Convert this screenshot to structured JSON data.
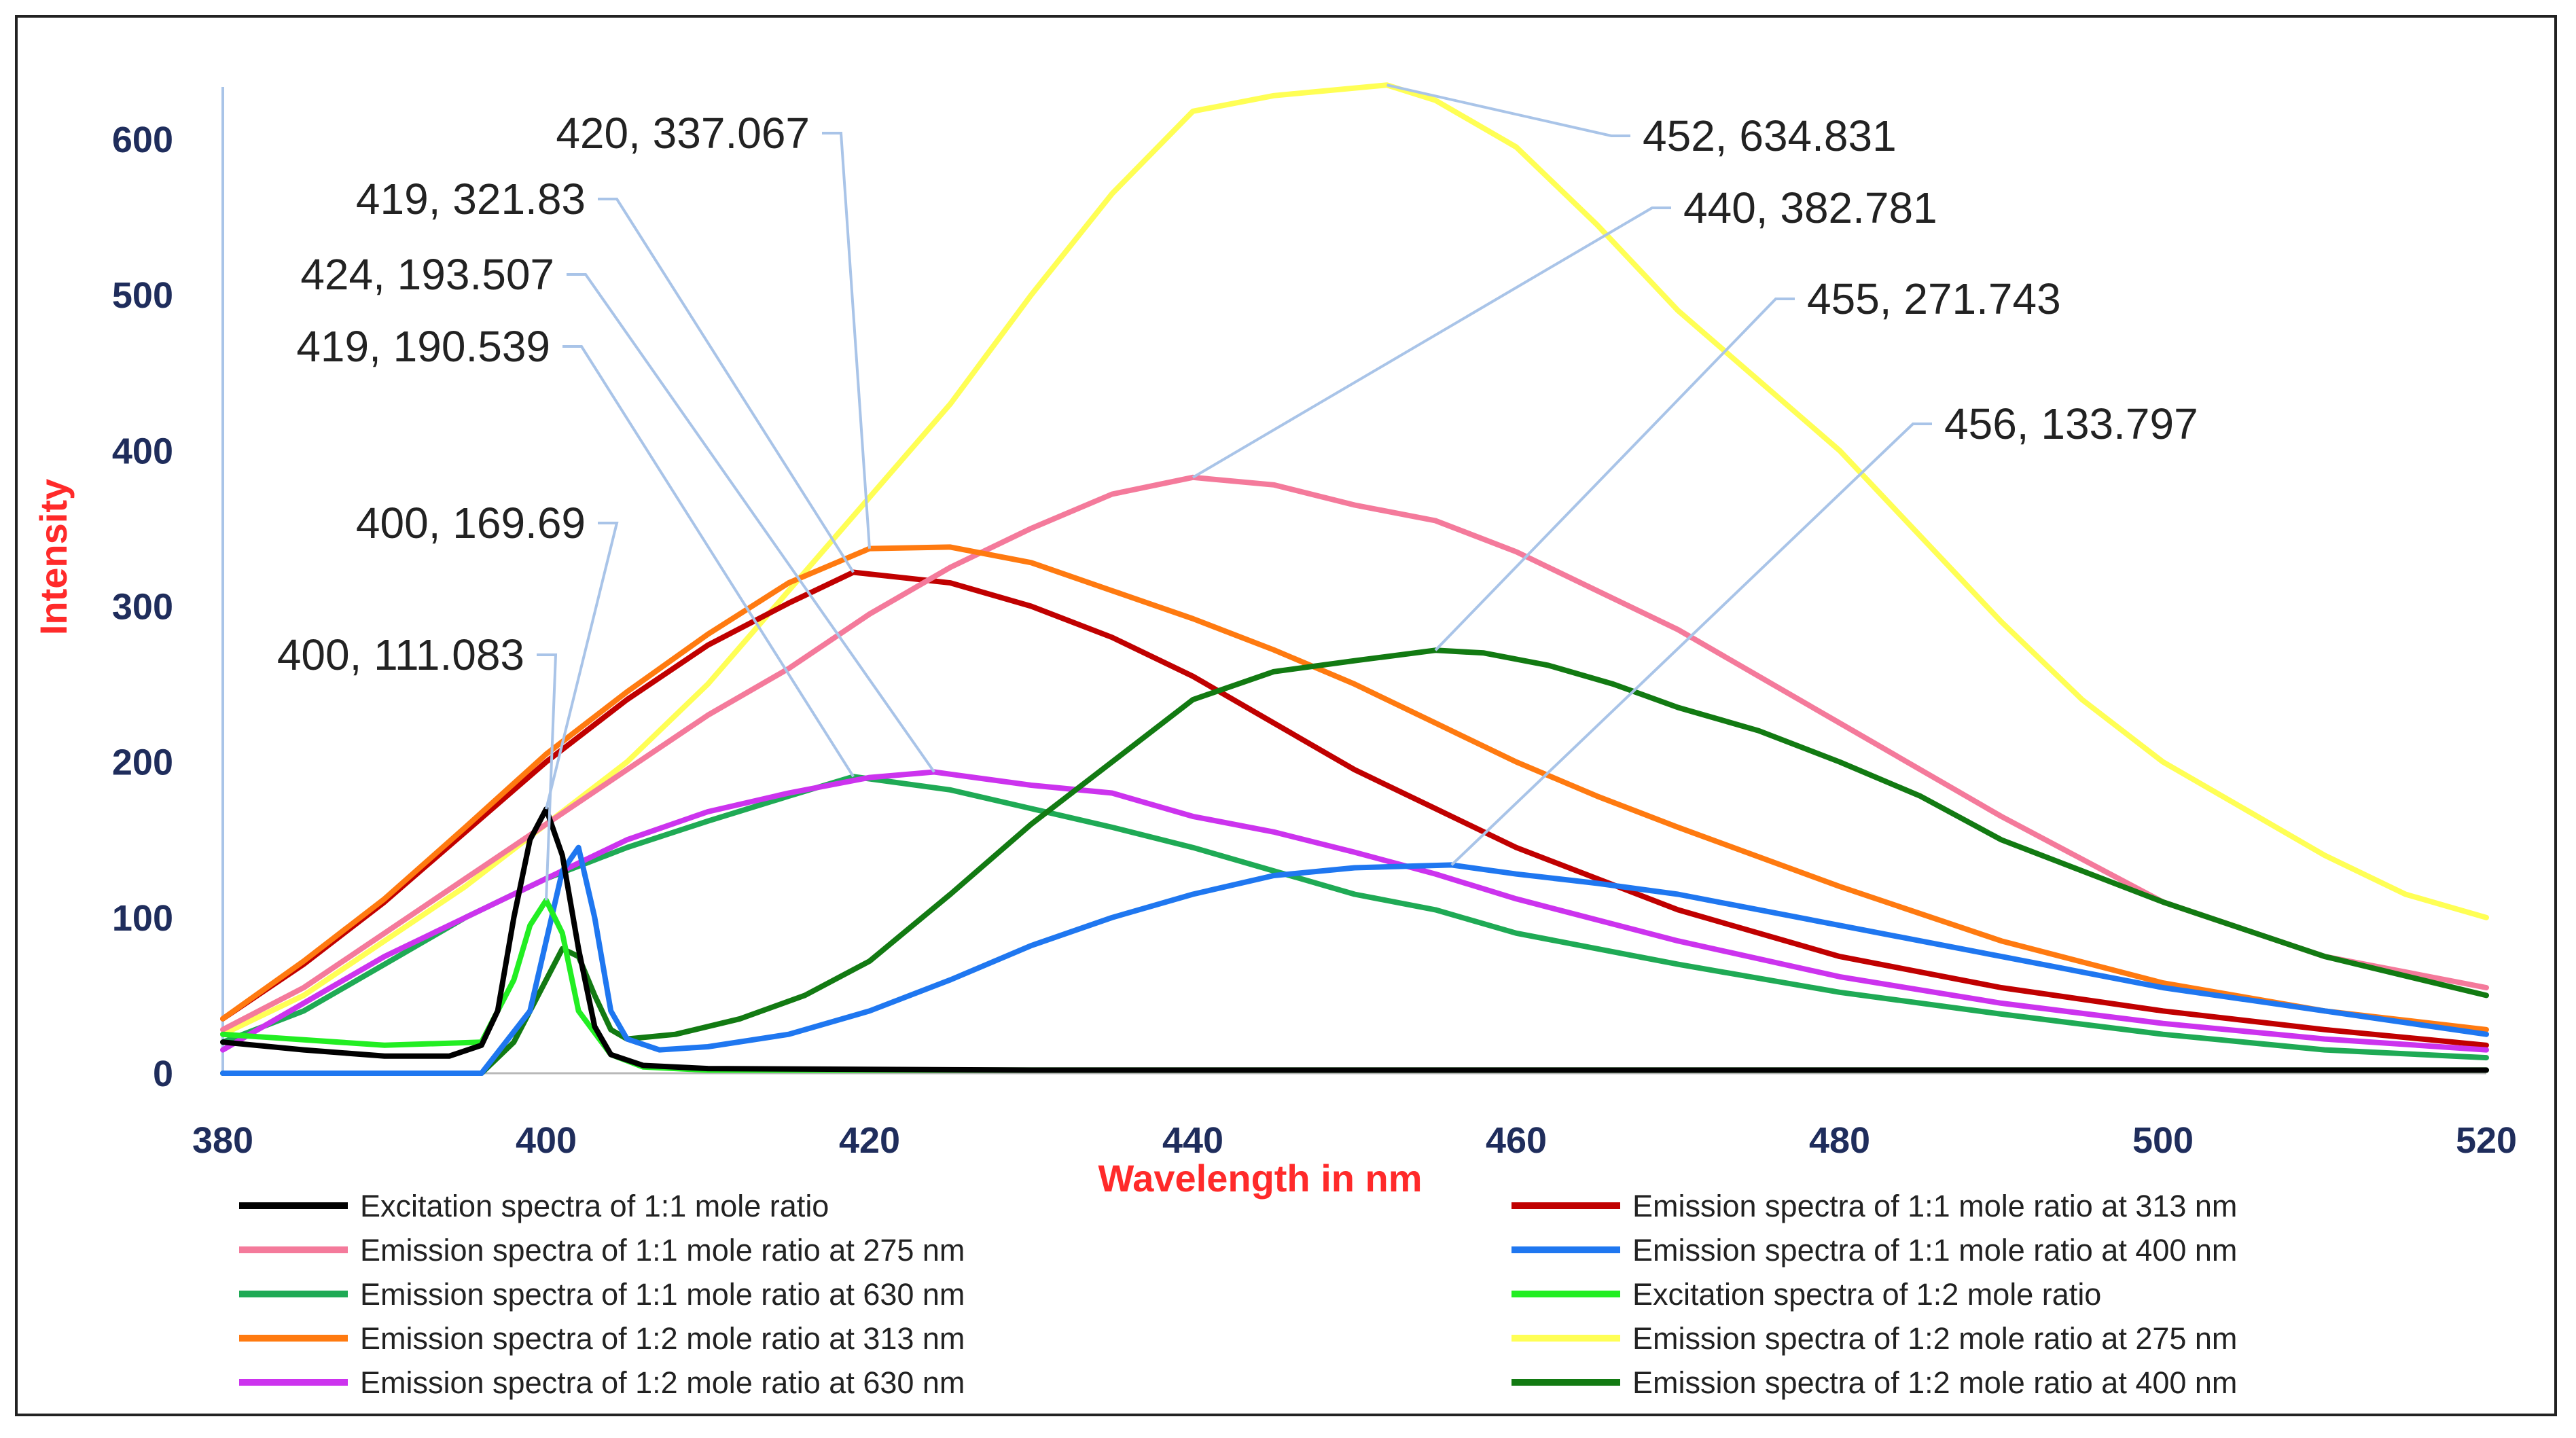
{
  "chart_data": {
    "type": "line",
    "title": "",
    "xlabel": "Wavelength in nm",
    "ylabel": "Intensity",
    "xlim": [
      380,
      520
    ],
    "ylim": [
      0,
      650
    ],
    "xticks": [
      "380",
      "400",
      "420",
      "440",
      "460",
      "480",
      "500",
      "520"
    ],
    "yticks": [
      "0",
      "100",
      "200",
      "300",
      "400",
      "500",
      "600"
    ],
    "grid": false,
    "legend_position": "bottom",
    "series": [
      {
        "name": "Excitation spectra of 1:1 mole ratio",
        "color": "#000000",
        "points": [
          [
            380,
            20
          ],
          [
            385,
            15
          ],
          [
            390,
            11
          ],
          [
            394,
            11
          ],
          [
            396,
            18
          ],
          [
            397,
            40
          ],
          [
            398,
            100
          ],
          [
            399,
            150
          ],
          [
            400,
            169.69
          ],
          [
            401,
            140
          ],
          [
            402,
            80
          ],
          [
            403,
            30
          ],
          [
            404,
            12
          ],
          [
            406,
            5
          ],
          [
            410,
            3
          ],
          [
            430,
            2
          ],
          [
            520,
            2
          ]
        ]
      },
      {
        "name": "Emission spectra of 1:1 mole ratio at 313 nm",
        "color": "#c00000",
        "points": [
          [
            380,
            35
          ],
          [
            385,
            70
          ],
          [
            390,
            110
          ],
          [
            395,
            155
          ],
          [
            400,
            200
          ],
          [
            405,
            240
          ],
          [
            410,
            275
          ],
          [
            415,
            302
          ],
          [
            419,
            321.83
          ],
          [
            425,
            315
          ],
          [
            430,
            300
          ],
          [
            435,
            280
          ],
          [
            440,
            255
          ],
          [
            445,
            225
          ],
          [
            450,
            195
          ],
          [
            455,
            170
          ],
          [
            460,
            145
          ],
          [
            470,
            105
          ],
          [
            480,
            75
          ],
          [
            490,
            55
          ],
          [
            500,
            40
          ],
          [
            510,
            28
          ],
          [
            520,
            18
          ]
        ]
      },
      {
        "name": "Emission spectra of 1:1 mole ratio at 275 nm",
        "color": "#f47a9b",
        "points": [
          [
            380,
            28
          ],
          [
            385,
            55
          ],
          [
            390,
            90
          ],
          [
            395,
            125
          ],
          [
            400,
            160
          ],
          [
            405,
            195
          ],
          [
            410,
            230
          ],
          [
            415,
            260
          ],
          [
            420,
            295
          ],
          [
            425,
            325
          ],
          [
            430,
            350
          ],
          [
            435,
            372
          ],
          [
            440,
            382.781
          ],
          [
            445,
            378
          ],
          [
            450,
            365
          ],
          [
            455,
            355
          ],
          [
            460,
            335
          ],
          [
            465,
            310
          ],
          [
            470,
            285
          ],
          [
            475,
            255
          ],
          [
            480,
            225
          ],
          [
            490,
            165
          ],
          [
            500,
            110
          ],
          [
            510,
            75
          ],
          [
            520,
            55
          ]
        ]
      },
      {
        "name": "Emission spectra of 1:1 mole ratio at 400 nm",
        "color": "#1f77f0",
        "points": [
          [
            380,
            0
          ],
          [
            396,
            0
          ],
          [
            399,
            40
          ],
          [
            401,
            130
          ],
          [
            402,
            145
          ],
          [
            403,
            100
          ],
          [
            404,
            40
          ],
          [
            405,
            22
          ],
          [
            407,
            15
          ],
          [
            410,
            17
          ],
          [
            415,
            25
          ],
          [
            420,
            40
          ],
          [
            425,
            60
          ],
          [
            430,
            82
          ],
          [
            435,
            100
          ],
          [
            440,
            115
          ],
          [
            445,
            127
          ],
          [
            450,
            132
          ],
          [
            456,
            133.797
          ],
          [
            460,
            128
          ],
          [
            465,
            122
          ],
          [
            470,
            115
          ],
          [
            480,
            95
          ],
          [
            490,
            75
          ],
          [
            500,
            55
          ],
          [
            510,
            40
          ],
          [
            520,
            25
          ]
        ]
      },
      {
        "name": "Emission spectra of 1:1 mole ratio at 630 nm",
        "color": "#1faa55",
        "points": [
          [
            380,
            20
          ],
          [
            385,
            40
          ],
          [
            390,
            70
          ],
          [
            395,
            100
          ],
          [
            400,
            125
          ],
          [
            405,
            145
          ],
          [
            410,
            162
          ],
          [
            415,
            178
          ],
          [
            419,
            190.539
          ],
          [
            425,
            182
          ],
          [
            430,
            170
          ],
          [
            435,
            158
          ],
          [
            440,
            145
          ],
          [
            445,
            130
          ],
          [
            450,
            115
          ],
          [
            455,
            105
          ],
          [
            460,
            90
          ],
          [
            470,
            70
          ],
          [
            480,
            52
          ],
          [
            490,
            38
          ],
          [
            500,
            25
          ],
          [
            510,
            15
          ],
          [
            520,
            10
          ]
        ]
      },
      {
        "name": "Excitation spectra of 1:2 mole ratio",
        "color": "#22ee22",
        "points": [
          [
            380,
            25
          ],
          [
            390,
            18
          ],
          [
            396,
            20
          ],
          [
            398,
            60
          ],
          [
            399,
            95
          ],
          [
            400,
            111.083
          ],
          [
            401,
            90
          ],
          [
            402,
            40
          ],
          [
            404,
            12
          ],
          [
            406,
            4
          ],
          [
            410,
            2
          ],
          [
            520,
            2
          ]
        ]
      },
      {
        "name": "Emission spectra of 1:2 mole ratio at 313 nm",
        "color": "#ff7a10",
        "points": [
          [
            380,
            35
          ],
          [
            385,
            72
          ],
          [
            390,
            112
          ],
          [
            395,
            158
          ],
          [
            400,
            205
          ],
          [
            405,
            245
          ],
          [
            410,
            282
          ],
          [
            415,
            315
          ],
          [
            420,
            337.067
          ],
          [
            425,
            338
          ],
          [
            430,
            328
          ],
          [
            435,
            310
          ],
          [
            440,
            292
          ],
          [
            445,
            272
          ],
          [
            450,
            250
          ],
          [
            455,
            225
          ],
          [
            460,
            200
          ],
          [
            465,
            178
          ],
          [
            470,
            158
          ],
          [
            480,
            120
          ],
          [
            490,
            85
          ],
          [
            500,
            58
          ],
          [
            510,
            40
          ],
          [
            520,
            28
          ]
        ]
      },
      {
        "name": "Emission spectra of 1:2 mole ratio at 275 nm",
        "color": "#ffff55",
        "points": [
          [
            380,
            25
          ],
          [
            385,
            50
          ],
          [
            390,
            85
          ],
          [
            395,
            120
          ],
          [
            400,
            160
          ],
          [
            405,
            200
          ],
          [
            410,
            250
          ],
          [
            415,
            310
          ],
          [
            420,
            370
          ],
          [
            425,
            430
          ],
          [
            430,
            500
          ],
          [
            435,
            565
          ],
          [
            440,
            618
          ],
          [
            445,
            628
          ],
          [
            452,
            634.831
          ],
          [
            455,
            625
          ],
          [
            460,
            595
          ],
          [
            465,
            545
          ],
          [
            470,
            490
          ],
          [
            475,
            445
          ],
          [
            480,
            400
          ],
          [
            485,
            345
          ],
          [
            490,
            290
          ],
          [
            495,
            240
          ],
          [
            500,
            200
          ],
          [
            505,
            170
          ],
          [
            510,
            140
          ],
          [
            515,
            115
          ],
          [
            520,
            100
          ]
        ]
      },
      {
        "name": "Emission spectra of 1:2 mole ratio at 630 nm",
        "color": "#cc33ee",
        "points": [
          [
            380,
            15
          ],
          [
            385,
            45
          ],
          [
            390,
            75
          ],
          [
            395,
            100
          ],
          [
            400,
            125
          ],
          [
            405,
            150
          ],
          [
            410,
            168
          ],
          [
            415,
            180
          ],
          [
            420,
            190
          ],
          [
            424,
            193.507
          ],
          [
            430,
            185
          ],
          [
            435,
            180
          ],
          [
            440,
            165
          ],
          [
            445,
            155
          ],
          [
            450,
            142
          ],
          [
            455,
            128
          ],
          [
            460,
            112
          ],
          [
            470,
            85
          ],
          [
            480,
            62
          ],
          [
            490,
            45
          ],
          [
            500,
            32
          ],
          [
            510,
            22
          ],
          [
            520,
            15
          ]
        ]
      },
      {
        "name": "Emission spectra of 1:2 mole ratio at 400 nm",
        "color": "#127a12",
        "points": [
          [
            380,
            0
          ],
          [
            396,
            0
          ],
          [
            398,
            20
          ],
          [
            400,
            60
          ],
          [
            401,
            80
          ],
          [
            402,
            75
          ],
          [
            403,
            50
          ],
          [
            404,
            28
          ],
          [
            405,
            22
          ],
          [
            408,
            25
          ],
          [
            412,
            35
          ],
          [
            416,
            50
          ],
          [
            420,
            72
          ],
          [
            425,
            115
          ],
          [
            430,
            160
          ],
          [
            435,
            200
          ],
          [
            440,
            240
          ],
          [
            445,
            258
          ],
          [
            450,
            265
          ],
          [
            455,
            271.743
          ],
          [
            458,
            270
          ],
          [
            462,
            262
          ],
          [
            466,
            250
          ],
          [
            470,
            235
          ],
          [
            475,
            220
          ],
          [
            480,
            200
          ],
          [
            485,
            178
          ],
          [
            490,
            150
          ],
          [
            500,
            110
          ],
          [
            510,
            75
          ],
          [
            520,
            50
          ]
        ]
      }
    ],
    "annotations": [
      {
        "text": "452, 634.831",
        "x": 452,
        "y": 634.831
      },
      {
        "text": "440, 382.781",
        "x": 440,
        "y": 382.781
      },
      {
        "text": "455, 271.743",
        "x": 455,
        "y": 271.743
      },
      {
        "text": "456, 133.797",
        "x": 456,
        "y": 133.797
      },
      {
        "text": "420, 337.067",
        "x": 420,
        "y": 337.067
      },
      {
        "text": "419, 321.83",
        "x": 419,
        "y": 321.83
      },
      {
        "text": "424, 193.507",
        "x": 424,
        "y": 193.507
      },
      {
        "text": "419, 190.539",
        "x": 419,
        "y": 190.539
      },
      {
        "text": "400, 169.69",
        "x": 400,
        "y": 169.69
      },
      {
        "text": "400, 111.083",
        "x": 400,
        "y": 111.083
      }
    ]
  }
}
